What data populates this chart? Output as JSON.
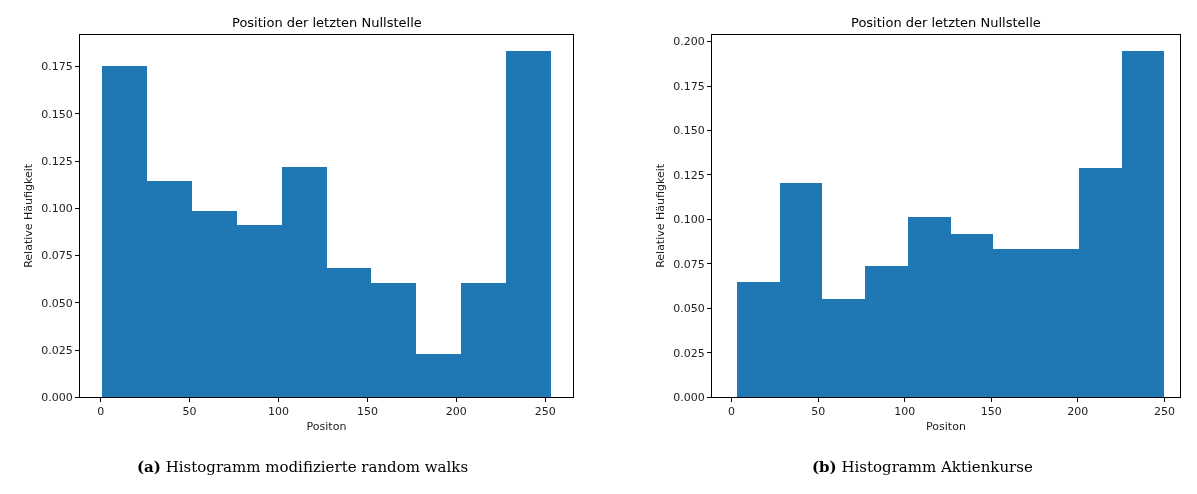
{
  "chart_data": [
    {
      "type": "histogram",
      "title": "Position der letzten Nullstelle",
      "xlabel": "Positon",
      "ylabel": "Relative Häufigkeit",
      "color": "#1f77b4",
      "bins": [
        1,
        26.2,
        51.4,
        76.6,
        101.8,
        127,
        152.2,
        177.4,
        202.6,
        227.8,
        253
      ],
      "values": [
        0.1755,
        0.1147,
        0.099,
        0.0917,
        0.122,
        0.0688,
        0.061,
        0.023,
        0.061,
        0.1834
      ],
      "xlim": [
        -11.6,
        265.6
      ],
      "xticks": [
        0,
        50,
        100,
        150,
        200,
        250
      ],
      "ylim": [
        0,
        0.192
      ],
      "yticks": [
        {
          "value": 0,
          "label": "0.000"
        },
        {
          "value": 0.025,
          "label": "0.025"
        },
        {
          "value": 0.05,
          "label": "0.050"
        },
        {
          "value": 0.075,
          "label": "0.075"
        },
        {
          "value": 0.1,
          "label": "0.100"
        },
        {
          "value": 0.125,
          "label": "0.125"
        },
        {
          "value": 0.15,
          "label": "0.150"
        },
        {
          "value": 0.175,
          "label": "0.175"
        }
      ],
      "annotations": [
        "(a) Histogramm modifizierte random walks"
      ]
    },
    {
      "type": "histogram",
      "title": "Position der letzten Nullstelle",
      "xlabel": "Positon",
      "ylabel": "Relative Häufigkeit",
      "color": "#1f77b4",
      "bins": [
        3,
        27.7,
        52.4,
        77.1,
        101.8,
        126.5,
        151.2,
        175.9,
        200.6,
        225.3,
        250
      ],
      "values": [
        0.065,
        0.1206,
        0.0556,
        0.0742,
        0.1017,
        0.0922,
        0.0837,
        0.0837,
        0.1294,
        0.1948
      ],
      "xlim": [
        -11.3,
        259
      ],
      "xticks": [
        0,
        50,
        100,
        150,
        200,
        250
      ],
      "ylim": [
        0,
        0.204
      ],
      "yticks": [
        {
          "value": 0,
          "label": "0.000"
        },
        {
          "value": 0.025,
          "label": "0.025"
        },
        {
          "value": 0.05,
          "label": "0.050"
        },
        {
          "value": 0.075,
          "label": "0.075"
        },
        {
          "value": 0.1,
          "label": "0.100"
        },
        {
          "value": 0.125,
          "label": "0.125"
        },
        {
          "value": 0.15,
          "label": "0.150"
        },
        {
          "value": 0.175,
          "label": "0.175"
        },
        {
          "value": 0.2,
          "label": "0.200"
        }
      ],
      "annotations": [
        "(b) Histogramm Aktienkurse"
      ]
    }
  ]
}
